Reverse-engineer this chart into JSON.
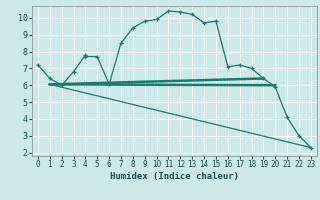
{
  "title": "",
  "xlabel": "Humidex (Indice chaleur)",
  "bg_color": "#cce8e8",
  "line_color": "#1a7a6e",
  "xlim": [
    -0.5,
    23.5
  ],
  "ylim": [
    1.8,
    10.7
  ],
  "yticks": [
    2,
    3,
    4,
    5,
    6,
    7,
    8,
    9,
    10
  ],
  "xticks": [
    0,
    1,
    2,
    3,
    4,
    5,
    6,
    7,
    8,
    9,
    10,
    11,
    12,
    13,
    14,
    15,
    16,
    17,
    18,
    19,
    20,
    21,
    22,
    23
  ],
  "curve1_x": [
    0,
    1,
    2,
    3,
    4,
    4,
    5,
    6,
    7,
    8,
    9,
    10,
    11,
    12,
    13,
    14,
    15,
    16,
    17,
    18,
    19,
    20,
    21,
    22,
    23
  ],
  "curve1_y": [
    7.2,
    6.4,
    6.0,
    6.8,
    7.8,
    7.7,
    7.7,
    6.05,
    8.5,
    9.4,
    9.8,
    9.9,
    10.4,
    10.35,
    10.2,
    9.7,
    9.8,
    7.1,
    7.2,
    7.0,
    6.4,
    5.9,
    4.1,
    3.0,
    2.3
  ],
  "line1_x": [
    1,
    19
  ],
  "line1_y": [
    6.05,
    6.4
  ],
  "line2_x": [
    1,
    20
  ],
  "line2_y": [
    6.05,
    6.0
  ],
  "line3_x": [
    1,
    23
  ],
  "line3_y": [
    6.05,
    2.3
  ]
}
